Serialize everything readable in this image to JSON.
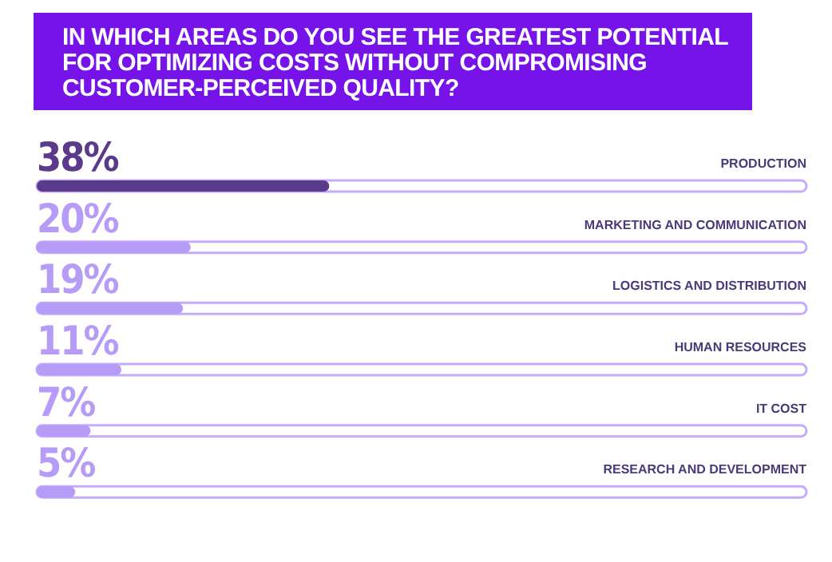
{
  "chart_data": {
    "type": "bar",
    "orientation": "horizontal",
    "title": "IN WHICH AREAS DO YOU SEE THE GREATEST POTENTIAL FOR OPTIMIZING COSTS WITHOUT COMPROMISING CUSTOMER-PERCEIVED QUALITY?",
    "categories": [
      "PRODUCTION",
      "MARKETING AND COMMUNICATION",
      "LOGISTICS AND DISTRIBUTION",
      "HUMAN RESOURCES",
      "IT COST",
      "RESEARCH AND DEVELOPMENT"
    ],
    "values": [
      38,
      20,
      19,
      11,
      7,
      5
    ],
    "value_labels": [
      "38%",
      "20%",
      "19%",
      "11%",
      "7%",
      "5%"
    ],
    "colors": [
      "#5b3a8c",
      "#b79cf7",
      "#b79cf7",
      "#b79cf7",
      "#b79cf7",
      "#b79cf7"
    ],
    "xlim": [
      0,
      100
    ],
    "legend": false,
    "grid": false
  }
}
